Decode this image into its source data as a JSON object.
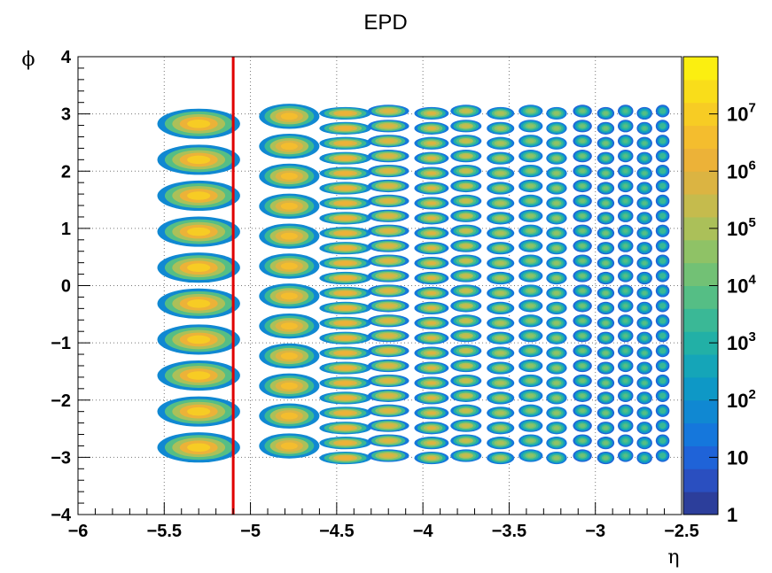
{
  "chart_data": {
    "type": "heatmap",
    "title": "EPD",
    "xlabel": "η",
    "ylabel": "ϕ",
    "xlim": [
      -6,
      -2.5
    ],
    "ylim": [
      -4,
      4
    ],
    "x_ticks": [
      "−6",
      "−5.5",
      "−5",
      "−4.5",
      "−4",
      "−3.5",
      "−3",
      "−2.5"
    ],
    "y_ticks": [
      "−4",
      "−3",
      "−2",
      "−1",
      "0",
      "1",
      "2",
      "3",
      "4"
    ],
    "grid": true,
    "z_scale": "log",
    "z_range": [
      1,
      100000000
    ],
    "colorbar_ticks": [
      {
        "base": "1",
        "exp": ""
      },
      {
        "base": "10",
        "exp": ""
      },
      {
        "base": "10",
        "exp": "2"
      },
      {
        "base": "10",
        "exp": "3"
      },
      {
        "base": "10",
        "exp": "4"
      },
      {
        "base": "10",
        "exp": "5"
      },
      {
        "base": "10",
        "exp": "6"
      },
      {
        "base": "10",
        "exp": "7"
      }
    ],
    "colormap": [
      "#2c3e9b",
      "#2a4fc0",
      "#1f63d8",
      "#1577dc",
      "#1088d2",
      "#0e98c6",
      "#15a5b8",
      "#22b0a6",
      "#3ab896",
      "#55be85",
      "#72c175",
      "#8fc266",
      "#abc059",
      "#c5bb4d",
      "#dbb442",
      "#ecb238",
      "#f4bd2e",
      "#f7cc24",
      "#f9dd1a",
      "#fbef10"
    ],
    "cut_line": {
      "eta": -5.1,
      "color": "#e00000"
    },
    "rings": [
      {
        "eta_range": [
          -5.6,
          -5.0
        ],
        "n_cells": 10,
        "cell_width": 0.48,
        "intensity": 1.0
      },
      {
        "eta_range": [
          -4.95,
          -4.6
        ],
        "n_cells": 12,
        "cell_width": 0.35,
        "intensity": 0.95
      },
      {
        "eta_range": [
          -4.6,
          -4.3
        ],
        "n_cells": 24,
        "cell_width": 0.3,
        "intensity": 0.9
      },
      {
        "eta_range": [
          -4.3,
          -4.1
        ],
        "n_cells": 24,
        "cell_width": 0.24,
        "intensity": 0.85
      },
      {
        "eta_range": [
          -4.05,
          -3.85
        ],
        "n_cells": 24,
        "cell_width": 0.2,
        "intensity": 0.8
      },
      {
        "eta_range": [
          -3.85,
          -3.65
        ],
        "n_cells": 24,
        "cell_width": 0.18,
        "intensity": 0.76
      },
      {
        "eta_range": [
          -3.65,
          -3.45
        ],
        "n_cells": 24,
        "cell_width": 0.16,
        "intensity": 0.72
      },
      {
        "eta_range": [
          -3.45,
          -3.3
        ],
        "n_cells": 24,
        "cell_width": 0.14,
        "intensity": 0.68
      },
      {
        "eta_range": [
          -3.3,
          -3.15
        ],
        "n_cells": 24,
        "cell_width": 0.12,
        "intensity": 0.64
      },
      {
        "eta_range": [
          -3.15,
          -3.0
        ],
        "n_cells": 24,
        "cell_width": 0.11,
        "intensity": 0.6
      },
      {
        "eta_range": [
          -3.0,
          -2.88
        ],
        "n_cells": 24,
        "cell_width": 0.1,
        "intensity": 0.57
      },
      {
        "eta_range": [
          -2.88,
          -2.77
        ],
        "n_cells": 24,
        "cell_width": 0.09,
        "intensity": 0.54
      },
      {
        "eta_range": [
          -2.77,
          -2.66
        ],
        "n_cells": 24,
        "cell_width": 0.09,
        "intensity": 0.52
      },
      {
        "eta_range": [
          -2.66,
          -2.56
        ],
        "n_cells": 24,
        "cell_width": 0.08,
        "intensity": 0.5
      }
    ]
  }
}
